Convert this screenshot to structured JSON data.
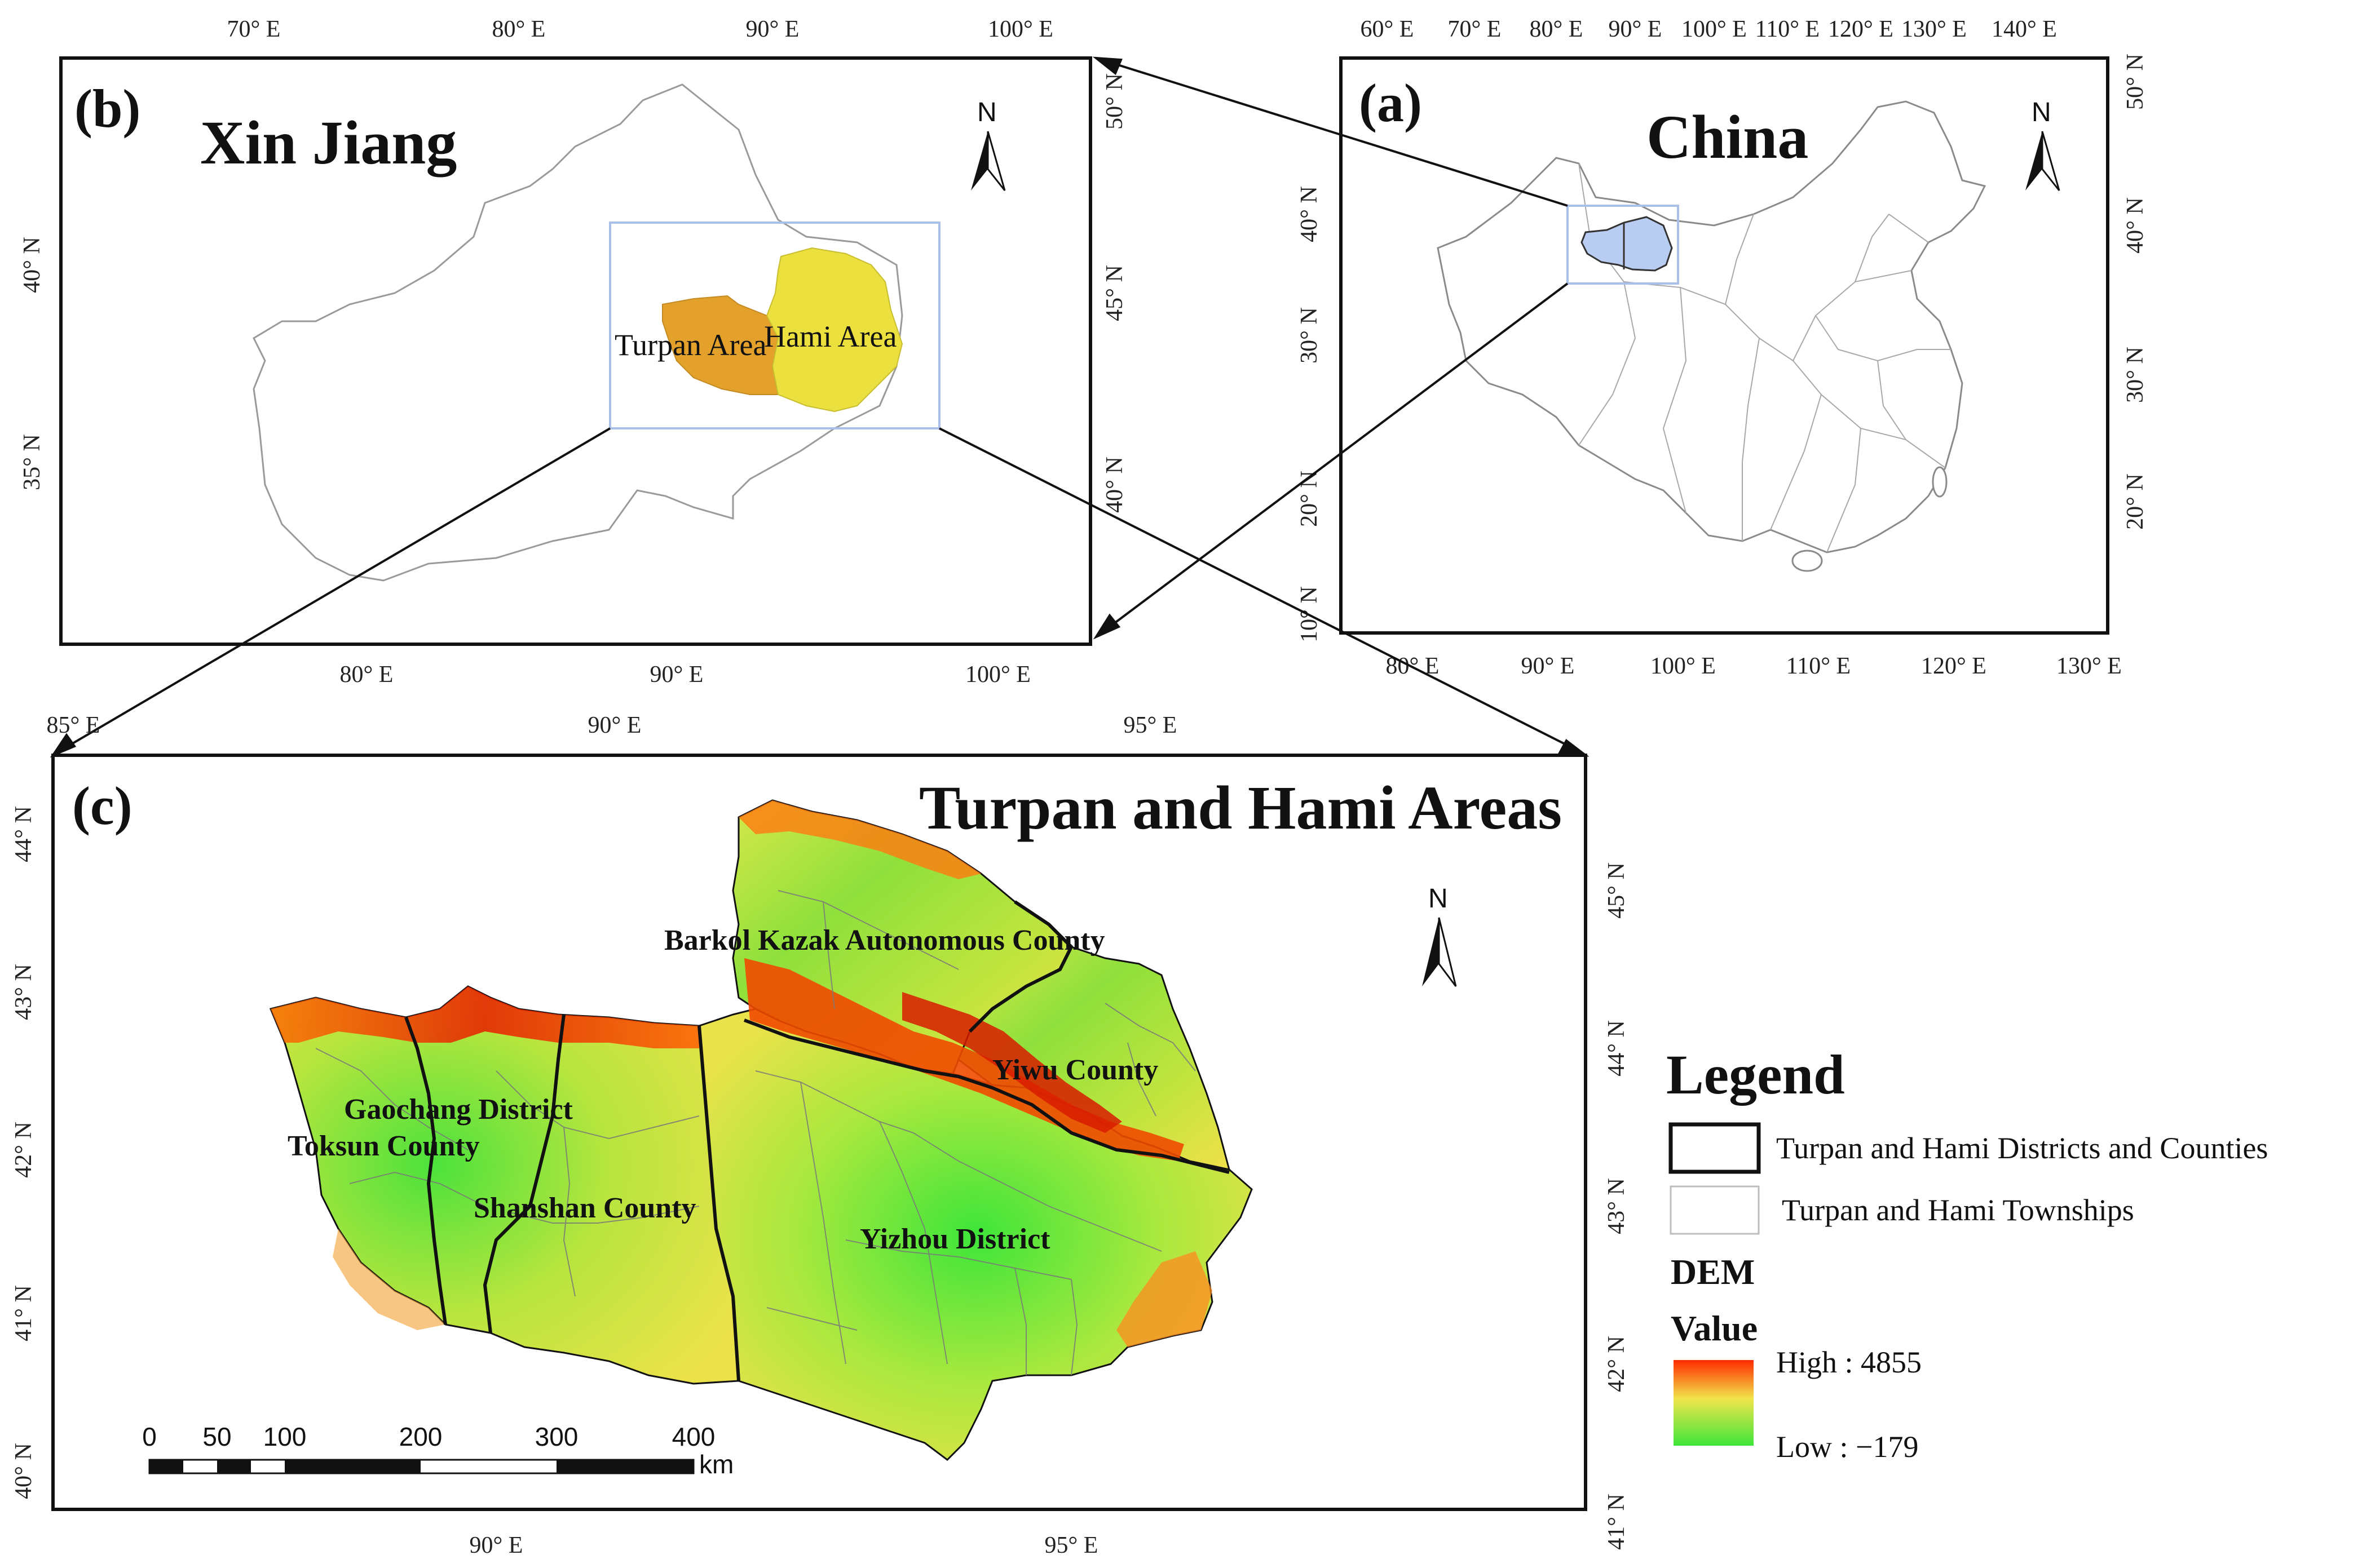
{
  "colors": {
    "frame": "#111111",
    "turpan_fill": "#e3a12c",
    "hami_fill": "#ece03e",
    "highlight_box": "#a9c0e8",
    "china_highlight": "#b9cdf2",
    "dem_high": "#ff2a00",
    "dem_mid": "#f1e54a",
    "dem_low": "#3ee53a"
  },
  "panel_a": {
    "label": "(a)",
    "title": "China",
    "north": "N",
    "top_ticks": [
      "60° E",
      "70° E",
      "80° E",
      "90° E",
      "100° E",
      "110° E",
      "120° E",
      "130° E",
      "140° E"
    ],
    "bottom_ticks": [
      "80° E",
      "90° E",
      "100° E",
      "110° E",
      "120° E",
      "130° E"
    ],
    "left_ticks": [
      "40° N",
      "30° N",
      "20° N",
      "10° N"
    ],
    "right_ticks": [
      "50° N",
      "40° N",
      "30° N",
      "20° N"
    ]
  },
  "panel_b": {
    "label": "(b)",
    "title": "Xin Jiang",
    "north": "N",
    "region_turpan": "Turpan Area",
    "region_hami": "Hami Area",
    "top_ticks": [
      "70° E",
      "80° E",
      "90° E",
      "100° E"
    ],
    "bottom_ticks": [
      "80° E",
      "90° E",
      "100° E"
    ],
    "left_ticks": [
      "40° N",
      "35° N"
    ],
    "right_ticks": [
      "50° N",
      "45° N",
      "40° N"
    ]
  },
  "panel_c": {
    "label": "(c)",
    "title": "Turpan and Hami Areas",
    "north": "N",
    "counties": {
      "barkol": "Barkol Kazak Autonomous County",
      "yiwu": "Yiwu County",
      "gaochang": "Gaochang District",
      "toksun": "Toksun County",
      "shanshan": "Shanshan County",
      "yizhou": "Yizhou District"
    },
    "top_ticks": [
      "85° E",
      "90° E",
      "95° E"
    ],
    "bottom_ticks": [
      "90° E",
      "95° E"
    ],
    "left_ticks": [
      "44° N",
      "43° N",
      "42° N",
      "41° N",
      "40° N"
    ],
    "right_ticks": [
      "45° N",
      "44° N",
      "43° N",
      "42° N",
      "41° N"
    ],
    "scale_bar": {
      "labels": [
        "0",
        "50",
        "100",
        "200",
        "300",
        "400"
      ],
      "unit": "km"
    }
  },
  "legend": {
    "title": "Legend",
    "districts_label": "Turpan and Hami Districts and Counties",
    "townships_label": "Turpan and Hami Townships",
    "dem_heading": "DEM",
    "value_heading": "Value",
    "dem_high_label": "High : 4855",
    "dem_low_label": "Low : −179",
    "dem_high": 4855,
    "dem_low": -179
  }
}
